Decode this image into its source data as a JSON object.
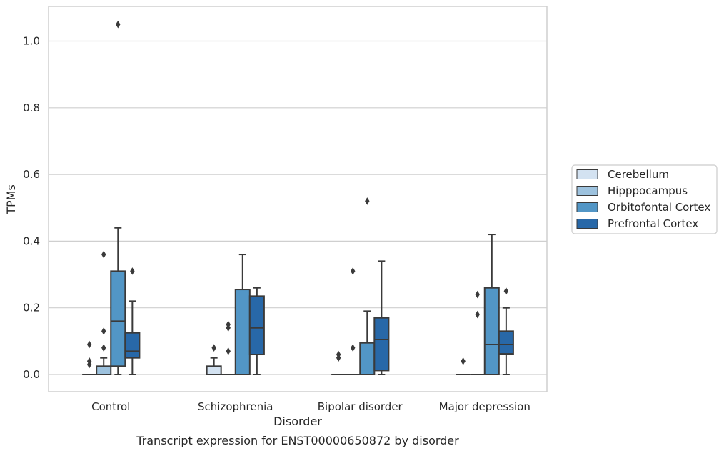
{
  "chart_data": {
    "type": "boxplot",
    "title": "",
    "caption": "Transcript expression for ENST00000650872 by disorder",
    "xlabel": "Disorder",
    "ylabel": "TPMs",
    "ylim": [
      -0.05,
      1.1
    ],
    "yticks": [
      0.0,
      0.2,
      0.4,
      0.6,
      0.8,
      1.0
    ],
    "ytick_labels": [
      "0.0",
      "0.2",
      "0.4",
      "0.6",
      "0.8",
      "1.0"
    ],
    "grid": "horizontal",
    "legend_position": "right",
    "categories": [
      "Control",
      "Schizophrenia",
      "Bipolar disorder",
      "Major depression"
    ],
    "series": [
      {
        "name": "Cerebellum",
        "color": "#d3e2f1",
        "boxes": [
          {
            "q1": 0.0,
            "median": 0.0,
            "q3": 0.0,
            "whislo": 0.0,
            "whishi": 0.0,
            "fliers": [
              0.09,
              0.04,
              0.03
            ]
          },
          {
            "q1": 0.0,
            "median": 0.0,
            "q3": 0.025,
            "whislo": 0.0,
            "whishi": 0.05,
            "fliers": [
              0.08
            ]
          },
          {
            "q1": 0.0,
            "median": 0.0,
            "q3": 0.0,
            "whislo": 0.0,
            "whishi": 0.0,
            "fliers": [
              0.06,
              0.05
            ]
          },
          {
            "q1": 0.0,
            "median": 0.0,
            "q3": 0.0,
            "whislo": 0.0,
            "whishi": 0.0,
            "fliers": [
              0.04
            ]
          }
        ]
      },
      {
        "name": "Hipppocampus",
        "color": "#9dc2de",
        "boxes": [
          {
            "q1": 0.0,
            "median": 0.0,
            "q3": 0.025,
            "whislo": 0.0,
            "whishi": 0.05,
            "fliers": [
              0.36,
              0.13,
              0.08
            ]
          },
          {
            "q1": 0.0,
            "median": 0.0,
            "q3": 0.0,
            "whislo": 0.0,
            "whishi": 0.0,
            "fliers": [
              0.15,
              0.14,
              0.07
            ]
          },
          {
            "q1": 0.0,
            "median": 0.0,
            "q3": 0.0,
            "whislo": 0.0,
            "whishi": 0.0,
            "fliers": [
              0.31,
              0.08
            ]
          },
          {
            "q1": 0.0,
            "median": 0.0,
            "q3": 0.0,
            "whislo": 0.0,
            "whishi": 0.0,
            "fliers": [
              0.24,
              0.18
            ]
          }
        ]
      },
      {
        "name": "Orbitofontal Cortex",
        "color": "#5296c6",
        "boxes": [
          {
            "q1": 0.025,
            "median": 0.16,
            "q3": 0.31,
            "whislo": 0.0,
            "whishi": 0.44,
            "fliers": [
              1.05
            ]
          },
          {
            "q1": 0.0,
            "median": 0.0,
            "q3": 0.255,
            "whislo": 0.0,
            "whishi": 0.36,
            "fliers": []
          },
          {
            "q1": 0.0,
            "median": 0.0,
            "q3": 0.095,
            "whislo": 0.0,
            "whishi": 0.19,
            "fliers": [
              0.52
            ]
          },
          {
            "q1": 0.0,
            "median": 0.09,
            "q3": 0.26,
            "whislo": 0.0,
            "whishi": 0.42,
            "fliers": []
          }
        ]
      },
      {
        "name": "Prefrontal Cortex",
        "color": "#2868a8",
        "boxes": [
          {
            "q1": 0.05,
            "median": 0.07,
            "q3": 0.125,
            "whislo": 0.0,
            "whishi": 0.22,
            "fliers": [
              0.31
            ]
          },
          {
            "q1": 0.06,
            "median": 0.14,
            "q3": 0.235,
            "whislo": 0.0,
            "whishi": 0.26,
            "fliers": []
          },
          {
            "q1": 0.012,
            "median": 0.105,
            "q3": 0.17,
            "whislo": 0.0,
            "whishi": 0.34,
            "fliers": []
          },
          {
            "q1": 0.062,
            "median": 0.09,
            "q3": 0.13,
            "whislo": 0.0,
            "whishi": 0.2,
            "fliers": [
              0.25
            ]
          }
        ]
      }
    ]
  }
}
